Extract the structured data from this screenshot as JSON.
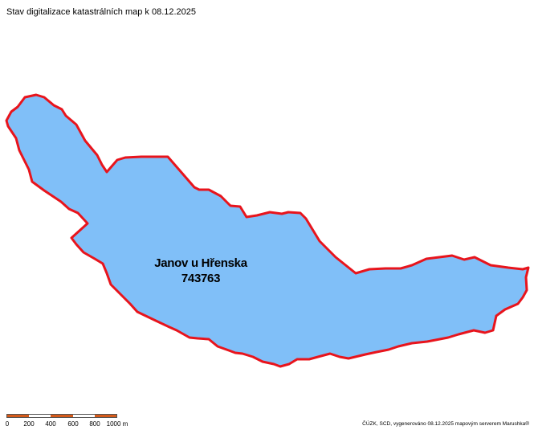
{
  "title": "Stav digitalizace katastrálních map k 08.12.2025",
  "parcel": {
    "name": "Janov u Hřenska",
    "code": "743763",
    "fill_color": "#80bff8",
    "border_color": "#e8141c"
  },
  "scale": {
    "labels": [
      "0",
      "200",
      "400",
      "600",
      "800",
      "1000 m"
    ],
    "colors": {
      "dark": "#d45a1a",
      "light": "#ffffff"
    }
  },
  "credit": "ČÚZK, SCD, vygenerováno 08.12.2025 mapovým serverem Marushka®"
}
